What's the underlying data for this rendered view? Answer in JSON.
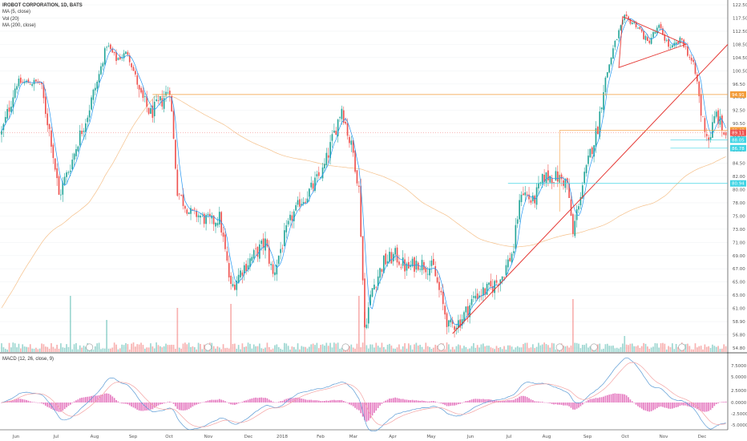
{
  "legend": {
    "symbol": "IROBOT CORPORATION, 1D, BATS",
    "ma5": "MA (5, close)",
    "vol": "Vol (20)",
    "ma200": "MA (200, close)",
    "macd": "MACD (12, 26, close, 9)"
  },
  "colors": {
    "up": "#26a69a",
    "down": "#ef5350",
    "ma5": "#2196f3",
    "ma200": "#f5c08a",
    "trend": "#e53935",
    "orange": "#f39c39",
    "cyan": "#40d4e4",
    "macd": "#5b9bd5",
    "signal": "#f4a3a3",
    "hist": "#e57ac0"
  },
  "chart_data": {
    "type": "candlestick",
    "title": "IROBOT CORPORATION, 1D, BATS",
    "x_ticks": [
      "Jun",
      "Jul",
      "Aug",
      "Sep",
      "Oct",
      "Nov",
      "Dec",
      "2018",
      "Feb",
      "Mar",
      "Apr",
      "May",
      "Jun",
      "Jul",
      "Aug",
      "Sep",
      "Oct",
      "Nov",
      "Dec"
    ],
    "y_ticks": [
      54.8,
      56.8,
      58.9,
      61.0,
      63.0,
      65.0,
      67.0,
      69.0,
      71.0,
      73.0,
      75.0,
      78.0,
      80.0,
      82.0,
      84.5,
      86.5,
      88.5,
      90.5,
      92.5,
      94.5,
      96.5,
      100.5,
      104.5,
      108.5,
      112.5,
      117.5,
      122.5
    ],
    "ylim": [
      54.0,
      123.0
    ],
    "price_labels": [
      {
        "value": 94.91,
        "label": "94.91",
        "color": "orange"
      },
      {
        "value": 89.48,
        "label": "89.48",
        "color": "orange"
      },
      {
        "value": 89.11,
        "label": "89.11",
        "color": "down"
      },
      {
        "value": 88.05,
        "label": "88.05",
        "color": "cyan"
      },
      {
        "value": 86.78,
        "label": "86.78",
        "color": "cyan"
      },
      {
        "value": 80.94,
        "label": "80.94",
        "color": "cyan"
      }
    ],
    "macd": {
      "y_ticks": [
        "7.5000",
        "5.0000",
        "2.5000",
        "0.0000",
        "-2.5000",
        "-5.0000"
      ],
      "ylim": [
        -7.0,
        9.0
      ]
    }
  }
}
